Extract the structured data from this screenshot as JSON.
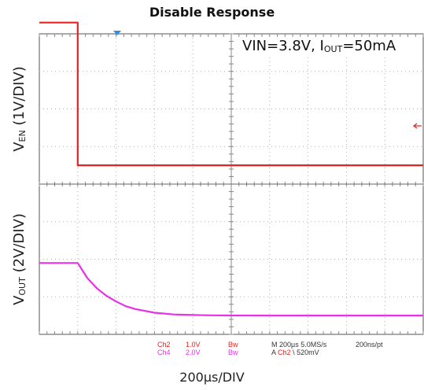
{
  "chart_data": {
    "type": "line",
    "title": "Disable Response",
    "xlabel": "200µs/DIV",
    "annotation": {
      "prefix": "VIN=3.8V, I",
      "sub": "OUT",
      "suffix": "=50mA"
    },
    "x_unit": "µs",
    "xlim": [
      -200,
      1800
    ],
    "grid": true,
    "trigger_time": 0,
    "panels": [
      {
        "ylabel": {
          "main": "V",
          "sub": "EN",
          "rest": " (1V/DIV)"
        },
        "scale": "1V/DIV",
        "series": [
          {
            "channel": "Ch2",
            "color": "#e8231f",
            "x": [
              -200,
              0,
              0,
              1800
            ],
            "y": [
              3.8,
              3.8,
              0,
              0
            ]
          }
        ]
      },
      {
        "ylabel": {
          "main": "V",
          "sub": "OUT",
          "rest": " (2V/DIV)"
        },
        "scale": "2V/DIV",
        "series": [
          {
            "channel": "Ch4",
            "color": "#e830e8",
            "x": [
              -200,
              0,
              50,
              100,
              150,
              200,
              250,
              300,
              400,
              500,
              600,
              700,
              800,
              1000,
              1200,
              1400,
              1600,
              1800
            ],
            "y": [
              2.8,
              2.8,
              2.0,
              1.45,
              1.05,
              0.75,
              0.5,
              0.35,
              0.15,
              0.06,
              0.03,
              0.015,
              0.005,
              0,
              0,
              0,
              0,
              0
            ]
          }
        ]
      }
    ],
    "scope_readout": {
      "ch2": "Ch2",
      "ch2_scale": "1.0V",
      "ch2_bw": "Bw",
      "ch4": "Ch4",
      "ch4_scale": "2.0V",
      "ch4_bw": "Bw",
      "timebase": "M 200µs 5.0MS/s",
      "sample": "200ns/pt",
      "trigger_prefix": "A",
      "trigger_ch": "Ch2",
      "trigger_slope": "\\",
      "trigger_level": "520mV"
    }
  }
}
